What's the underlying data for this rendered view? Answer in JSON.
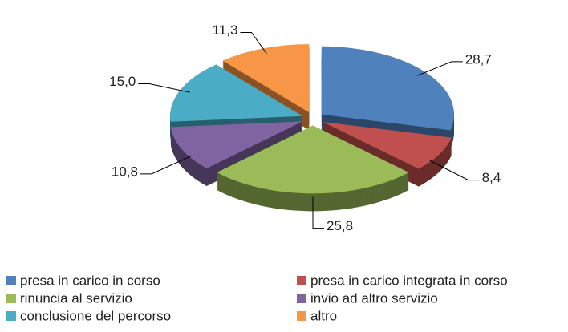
{
  "chart_data": {
    "type": "pie3d",
    "categories": [
      "presa in carico in corso",
      "presa in carico integrata in corso",
      "rinuncia al servizio",
      "invio ad  altro servizio",
      "conclusione del percorso",
      "altro"
    ],
    "values": [
      28.7,
      8.4,
      25.8,
      10.8,
      15.0,
      11.3
    ],
    "value_labels": [
      "28,7",
      "8,4",
      "25,8",
      "10,8",
      "15,0",
      "11,3"
    ],
    "colors": [
      "#4f81bd",
      "#c0504d",
      "#9bbb59",
      "#8064a2",
      "#4bacc6",
      "#f79646"
    ]
  }
}
